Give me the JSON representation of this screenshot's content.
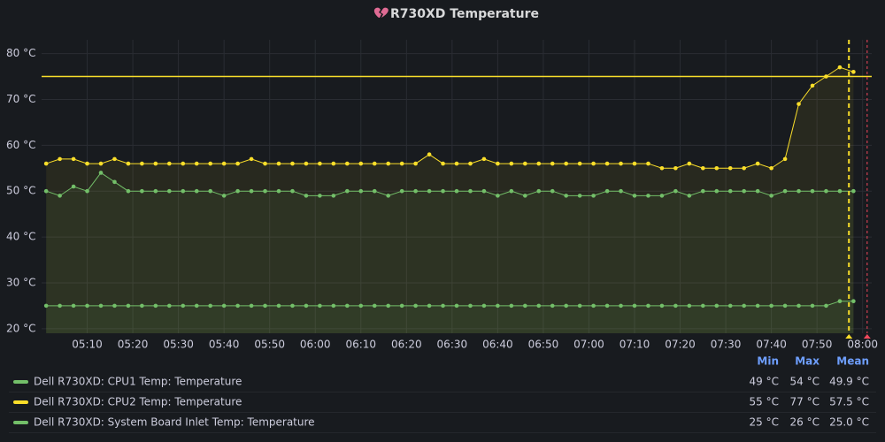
{
  "chart_data": {
    "type": "line",
    "title": "R730XD Temperature",
    "x": [
      "05:01",
      "05:04",
      "05:07",
      "05:10",
      "05:13",
      "05:16",
      "05:19",
      "05:22",
      "05:25",
      "05:28",
      "05:31",
      "05:34",
      "05:37",
      "05:40",
      "05:43",
      "05:46",
      "05:49",
      "05:52",
      "05:55",
      "05:58",
      "06:01",
      "06:04",
      "06:07",
      "06:10",
      "06:13",
      "06:16",
      "06:19",
      "06:22",
      "06:25",
      "06:28",
      "06:31",
      "06:34",
      "06:37",
      "06:40",
      "06:43",
      "06:46",
      "06:49",
      "06:52",
      "06:55",
      "06:58",
      "07:01",
      "07:04",
      "07:07",
      "07:10",
      "07:13",
      "07:16",
      "07:19",
      "07:22",
      "07:25",
      "07:28",
      "07:31",
      "07:34",
      "07:37",
      "07:40",
      "07:43",
      "07:46",
      "07:49",
      "07:52",
      "07:55",
      "07:58"
    ],
    "xlim": [
      "05:00",
      "08:02"
    ],
    "xticks": [
      "05:10",
      "05:20",
      "05:30",
      "05:40",
      "05:50",
      "06:00",
      "06:10",
      "06:20",
      "06:30",
      "06:40",
      "06:50",
      "07:00",
      "07:10",
      "07:20",
      "07:30",
      "07:40",
      "07:50",
      "08:00"
    ],
    "ylim": [
      19,
      83
    ],
    "yticks": [
      {
        "value": 20,
        "label": "20 °C"
      },
      {
        "value": 30,
        "label": "30 °C"
      },
      {
        "value": 40,
        "label": "40 °C"
      },
      {
        "value": 50,
        "label": "50 °C"
      },
      {
        "value": 60,
        "label": "60 °C"
      },
      {
        "value": 70,
        "label": "70 °C"
      },
      {
        "value": 80,
        "label": "80 °C"
      }
    ],
    "grid": true,
    "threshold": 75,
    "threshold_color": "#fade2a",
    "annotations": [
      {
        "x": "07:57",
        "color": "#fade2a"
      },
      {
        "x": "08:01",
        "color": "#f2495c"
      }
    ],
    "legend_columns": [
      "Min",
      "Max",
      "Mean"
    ],
    "series": [
      {
        "name": "Dell R730XD: CPU1 Temp: Temperature",
        "color": "#73bf69",
        "values": [
          50,
          49,
          51,
          50,
          54,
          52,
          50,
          50,
          50,
          50,
          50,
          50,
          50,
          49,
          50,
          50,
          50,
          50,
          50,
          49,
          49,
          49,
          50,
          50,
          50,
          49,
          50,
          50,
          50,
          50,
          50,
          50,
          50,
          49,
          50,
          49,
          50,
          50,
          49,
          49,
          49,
          50,
          50,
          49,
          49,
          49,
          50,
          49,
          50,
          50,
          50,
          50,
          50,
          49,
          50,
          50,
          50,
          50,
          50,
          50
        ],
        "stats": [
          49,
          54,
          49.9
        ],
        "stats_labels": [
          "49 °C",
          "54 °C",
          "49.9 °C"
        ]
      },
      {
        "name": "Dell R730XD: CPU2 Temp: Temperature",
        "color": "#fade2a",
        "values": [
          56,
          57,
          57,
          56,
          56,
          57,
          56,
          56,
          56,
          56,
          56,
          56,
          56,
          56,
          56,
          57,
          56,
          56,
          56,
          56,
          56,
          56,
          56,
          56,
          56,
          56,
          56,
          56,
          58,
          56,
          56,
          56,
          57,
          56,
          56,
          56,
          56,
          56,
          56,
          56,
          56,
          56,
          56,
          56,
          56,
          55,
          55,
          56,
          55,
          55,
          55,
          55,
          56,
          55,
          57,
          69,
          73,
          75,
          77,
          76
        ],
        "stats": [
          55,
          77,
          57.5
        ],
        "stats_labels": [
          "55 °C",
          "77 °C",
          "57.5 °C"
        ]
      },
      {
        "name": "Dell R730XD: System Board Inlet Temp: Temperature",
        "color": "#73bf69",
        "values": [
          25,
          25,
          25,
          25,
          25,
          25,
          25,
          25,
          25,
          25,
          25,
          25,
          25,
          25,
          25,
          25,
          25,
          25,
          25,
          25,
          25,
          25,
          25,
          25,
          25,
          25,
          25,
          25,
          25,
          25,
          25,
          25,
          25,
          25,
          25,
          25,
          25,
          25,
          25,
          25,
          25,
          25,
          25,
          25,
          25,
          25,
          25,
          25,
          25,
          25,
          25,
          25,
          25,
          25,
          25,
          25,
          25,
          25,
          26,
          26
        ],
        "stats": [
          25,
          26,
          25.0
        ],
        "stats_labels": [
          "25 °C",
          "26 °C",
          "25.0 °C"
        ]
      }
    ]
  }
}
